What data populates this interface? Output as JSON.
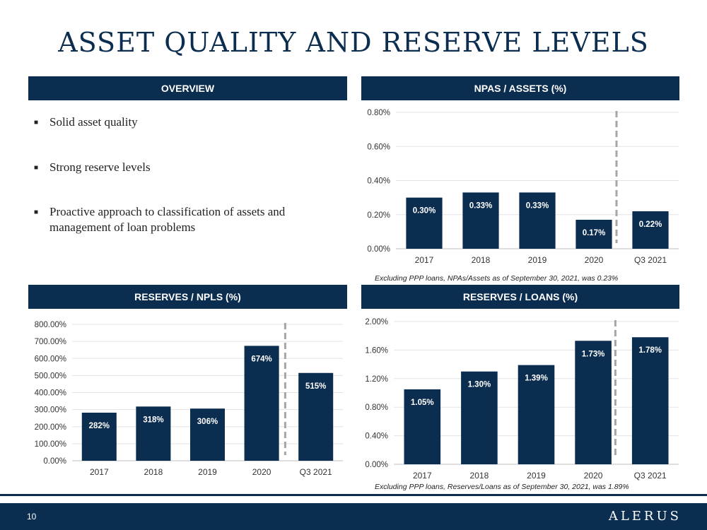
{
  "slide": {
    "title": "ASSET QUALITY AND RESERVE LEVELS",
    "page_number": "10",
    "logo_text": "ALERUS"
  },
  "overview": {
    "header": "OVERVIEW",
    "bullets": [
      "Solid asset quality",
      "Strong reserve levels",
      "Proactive approach to classification of assets and management of loan problems"
    ]
  },
  "chart_data": [
    {
      "id": "npas",
      "type": "bar",
      "title": "NPAS / ASSETS (%)",
      "categories": [
        "2017",
        "2018",
        "2019",
        "2020",
        "Q3 2021"
      ],
      "values": [
        0.3,
        0.33,
        0.33,
        0.17,
        0.22
      ],
      "data_labels": [
        "0.30%",
        "0.33%",
        "0.33%",
        "0.17%",
        "0.22%"
      ],
      "yticks": [
        0,
        0.2,
        0.4,
        0.6,
        0.8
      ],
      "ytick_labels": [
        "0.00%",
        "0.20%",
        "0.40%",
        "0.60%",
        "0.80%"
      ],
      "ylim": [
        0,
        0.8
      ],
      "grid": true,
      "divider_after_category": 3,
      "bar_color": "#0b2d4f",
      "note": "Excluding PPP loans, NPAs/Assets as of September 30, 2021, was 0.23%"
    },
    {
      "id": "npls",
      "type": "bar",
      "title": "RESERVES / NPLS (%)",
      "categories": [
        "2017",
        "2018",
        "2019",
        "2020",
        "Q3 2021"
      ],
      "values": [
        282,
        318,
        306,
        674,
        515
      ],
      "data_labels": [
        "282%",
        "318%",
        "306%",
        "674%",
        "515%"
      ],
      "yticks": [
        0,
        100,
        200,
        300,
        400,
        500,
        600,
        700,
        800
      ],
      "ytick_labels": [
        "0.00%",
        "100.00%",
        "200.00%",
        "300.00%",
        "400.00%",
        "500.00%",
        "600.00%",
        "700.00%",
        "800.00%"
      ],
      "ylim": [
        0,
        800
      ],
      "grid": true,
      "divider_after_category": 3,
      "bar_color": "#0b2d4f"
    },
    {
      "id": "loans",
      "type": "bar",
      "title": "RESERVES / LOANS (%)",
      "categories": [
        "2017",
        "2018",
        "2019",
        "2020",
        "Q3 2021"
      ],
      "values": [
        1.05,
        1.3,
        1.39,
        1.73,
        1.78
      ],
      "data_labels": [
        "1.05%",
        "1.30%",
        "1.39%",
        "1.73%",
        "1.78%"
      ],
      "yticks": [
        0,
        0.4,
        0.8,
        1.2,
        1.6,
        2.0
      ],
      "ytick_labels": [
        "0.00%",
        "0.40%",
        "0.80%",
        "1.20%",
        "1.60%",
        "2.00%"
      ],
      "ylim": [
        0,
        2.0
      ],
      "grid": true,
      "divider_after_category": 3,
      "bar_color": "#0b2d4f",
      "note": "Excluding PPP loans, Reserves/Loans as of September 30, 2021, was 1.89%"
    }
  ]
}
